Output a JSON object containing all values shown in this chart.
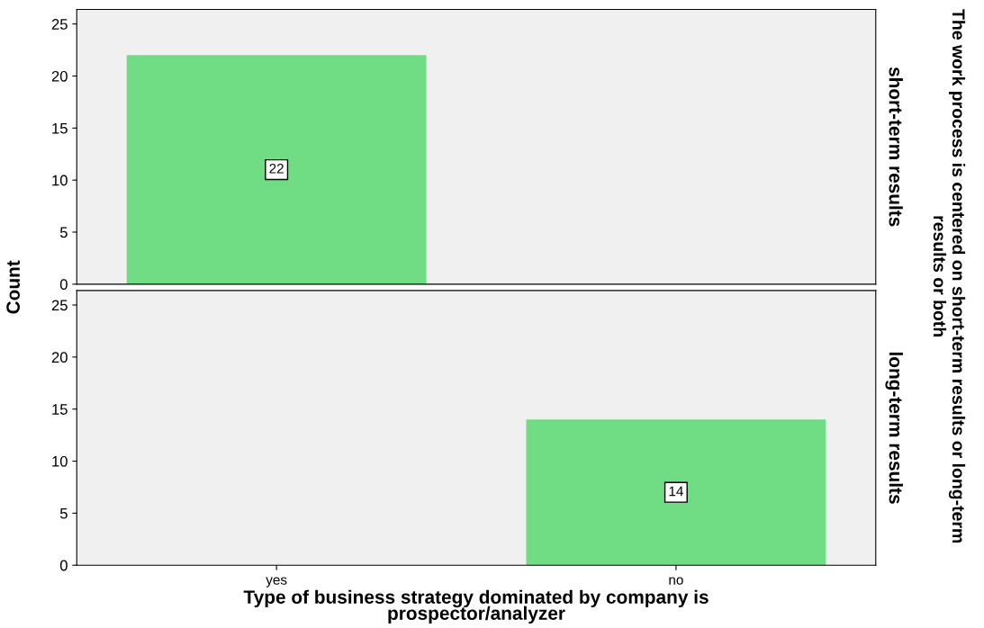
{
  "chart_data": [
    {
      "type": "bar",
      "values": [
        22,
        null
      ],
      "color": "#70dc84",
      "ylim": [
        0,
        26.4
      ],
      "yticks": [
        0,
        5,
        10,
        15,
        20,
        25
      ],
      "ylabel": "Count",
      "y2label": "short-term results",
      "annotations": [
        "The work process is centered on short-term results or long-term results or both"
      ],
      "data_labels": true,
      "tick_labels": "y",
      "grid": false,
      "legend": false
    },
    {
      "type": "bar",
      "categories": [
        "yes",
        "no"
      ],
      "values": [
        null,
        14
      ],
      "color": "#70dc84",
      "ylim": [
        0,
        26.4
      ],
      "yticks": [
        0,
        5,
        10,
        15,
        20,
        25
      ],
      "xlabel": "Type of business strategy dominated by company is\nprospector/analyzer",
      "y2label": "long-term results",
      "data_labels": true,
      "grid": false,
      "legend": false
    }
  ]
}
